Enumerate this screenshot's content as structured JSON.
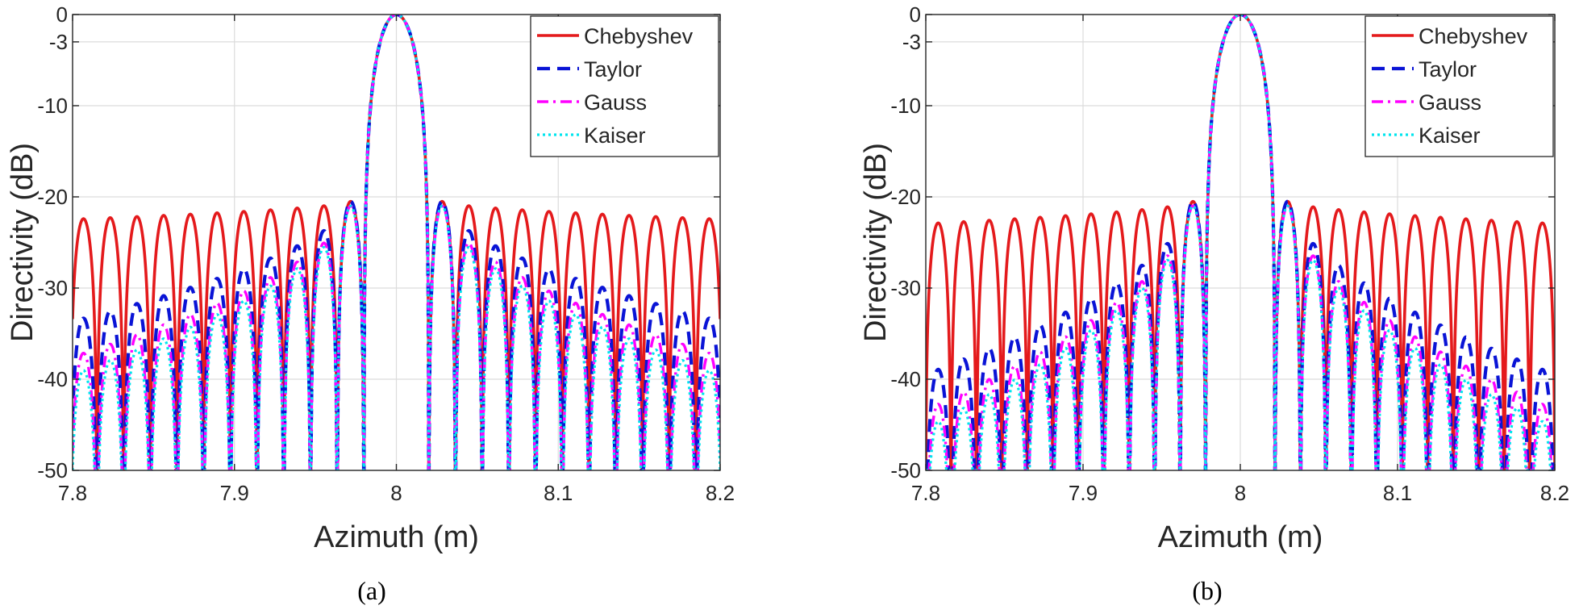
{
  "chart_data": [
    {
      "type": "line",
      "panel_label": "(a)",
      "xlabel": "Azimuth (m)",
      "ylabel": "Directivity (dB)",
      "xlim": [
        7.8,
        8.2
      ],
      "ylim": [
        -50,
        0
      ],
      "x_ticks": [
        "7.8",
        "7.9",
        "8",
        "8.1",
        "8.2"
      ],
      "x_tick_values": [
        7.8,
        7.9,
        8.0,
        8.1,
        8.2
      ],
      "y_ticks": [
        "0",
        "-3",
        "-10",
        "-20",
        "-30",
        "-40",
        "-50"
      ],
      "y_tick_values": [
        0,
        -3,
        -10,
        -20,
        -30,
        -40,
        -50
      ],
      "grid": true,
      "legend_position": "top-right",
      "mainlobe_center": 8.0,
      "mainlobe_halfwidth": 0.02,
      "sidelobe_spacing": 0.0165,
      "series": [
        {
          "name": "Chebyshev",
          "color": "#e41a1c",
          "dash": "solid",
          "sidelobe_peak_near": -20.5,
          "sidelobe_peak_far": -22.5,
          "null_depth": -52
        },
        {
          "name": "Taylor",
          "color": "#0a14d6",
          "dash": "dashed",
          "sidelobe_peak_near": -20.5,
          "sidelobe_peak_far": -34,
          "null_depth": -50
        },
        {
          "name": "Gauss",
          "color": "#ff00ff",
          "dash": "dashdot",
          "sidelobe_peak_near": -21,
          "sidelobe_peak_far": -38,
          "null_depth": -50
        },
        {
          "name": "Kaiser",
          "color": "#00e5ee",
          "dash": "dotted",
          "sidelobe_peak_near": -21,
          "sidelobe_peak_far": -40,
          "null_depth": -50
        }
      ]
    },
    {
      "type": "line",
      "panel_label": "(b)",
      "xlabel": "Azimuth (m)",
      "ylabel": "Directivity (dB)",
      "xlim": [
        7.8,
        8.2
      ],
      "ylim": [
        -50,
        0
      ],
      "x_ticks": [
        "7.8",
        "7.9",
        "8",
        "8.1",
        "8.2"
      ],
      "x_tick_values": [
        7.8,
        7.9,
        8.0,
        8.1,
        8.2
      ],
      "y_ticks": [
        "0",
        "-3",
        "-10",
        "-20",
        "-30",
        "-40",
        "-50"
      ],
      "y_tick_values": [
        0,
        -3,
        -10,
        -20,
        -30,
        -40,
        -50
      ],
      "grid": true,
      "legend_position": "top-right",
      "mainlobe_center": 8.0,
      "mainlobe_halfwidth": 0.022,
      "sidelobe_spacing": 0.0162,
      "series": [
        {
          "name": "Chebyshev",
          "color": "#e41a1c",
          "dash": "solid",
          "sidelobe_peak_near": -20.5,
          "sidelobe_peak_far": -23,
          "null_depth": -50
        },
        {
          "name": "Taylor",
          "color": "#0a14d6",
          "dash": "dashed",
          "sidelobe_peak_near": -20.5,
          "sidelobe_peak_far": -40,
          "null_depth": -50
        },
        {
          "name": "Gauss",
          "color": "#ff00ff",
          "dash": "dashdot",
          "sidelobe_peak_near": -21,
          "sidelobe_peak_far": -44,
          "null_depth": -50
        },
        {
          "name": "Kaiser",
          "color": "#00e5ee",
          "dash": "dotted",
          "sidelobe_peak_near": -21,
          "sidelobe_peak_far": -46,
          "null_depth": -50
        }
      ]
    }
  ]
}
